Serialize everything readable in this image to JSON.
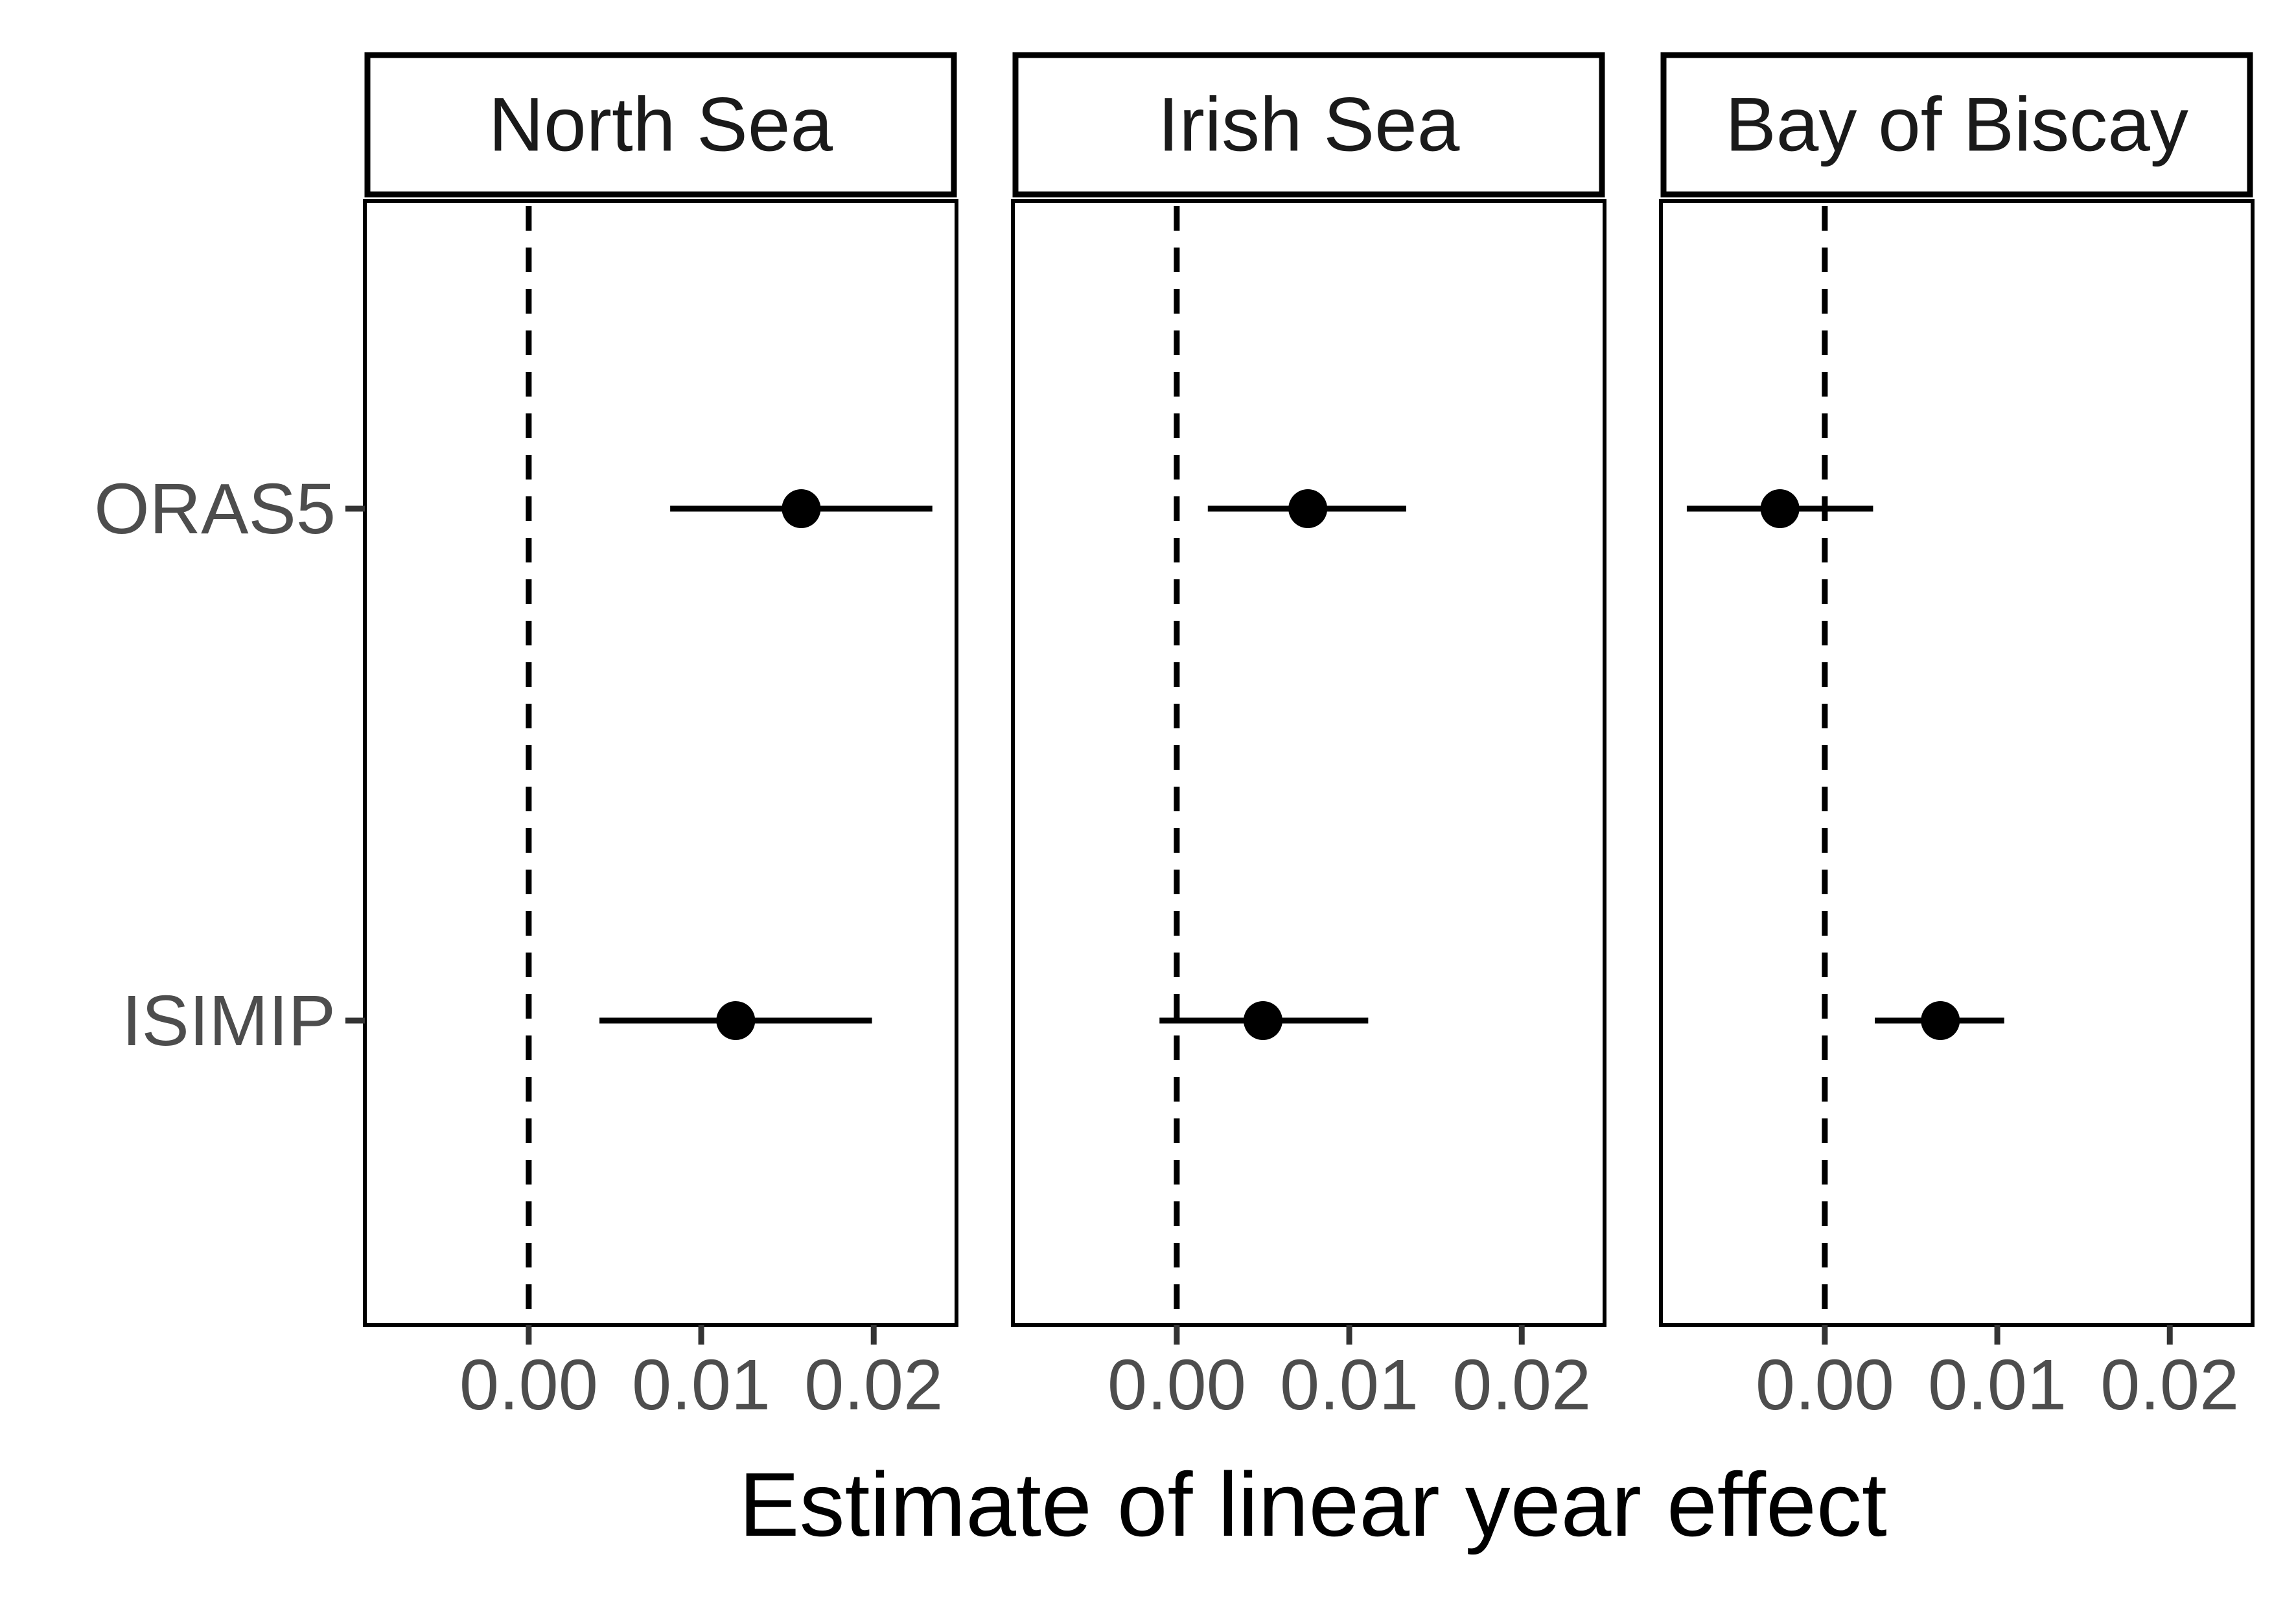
{
  "chart_data": {
    "type": "scatter",
    "subtype": "forest-plot",
    "xlabel": "Estimate of linear year effect",
    "ylabel": "",
    "categories": [
      "ORAS5",
      "ISIMIP"
    ],
    "x_ticks": [
      0.0,
      0.01,
      0.02
    ],
    "x_tick_labels": [
      "0.00",
      "0.01",
      "0.02"
    ],
    "xlim": [
      -0.0095,
      0.0248
    ],
    "reference_line_x": 0.0,
    "grid": false,
    "legend": "none",
    "colors": {
      "point": "#000000",
      "line": "#000000",
      "tick_label": "#4d4d4d",
      "background": "#ffffff"
    },
    "panels": [
      {
        "title": "North Sea",
        "points": [
          {
            "category": "ORAS5",
            "estimate": 0.0158,
            "lower": 0.0082,
            "upper": 0.0234
          },
          {
            "category": "ISIMIP",
            "estimate": 0.012,
            "lower": 0.0041,
            "upper": 0.0199
          }
        ]
      },
      {
        "title": "Irish Sea",
        "points": [
          {
            "category": "ORAS5",
            "estimate": 0.0076,
            "lower": 0.0018,
            "upper": 0.0133
          },
          {
            "category": "ISIMIP",
            "estimate": 0.005,
            "lower": -0.001,
            "upper": 0.0111
          }
        ]
      },
      {
        "title": "Bay of Biscay",
        "points": [
          {
            "category": "ORAS5",
            "estimate": -0.0026,
            "lower": -0.008,
            "upper": 0.0028
          },
          {
            "category": "ISIMIP",
            "estimate": 0.0067,
            "lower": 0.0029,
            "upper": 0.0104
          }
        ]
      }
    ]
  }
}
